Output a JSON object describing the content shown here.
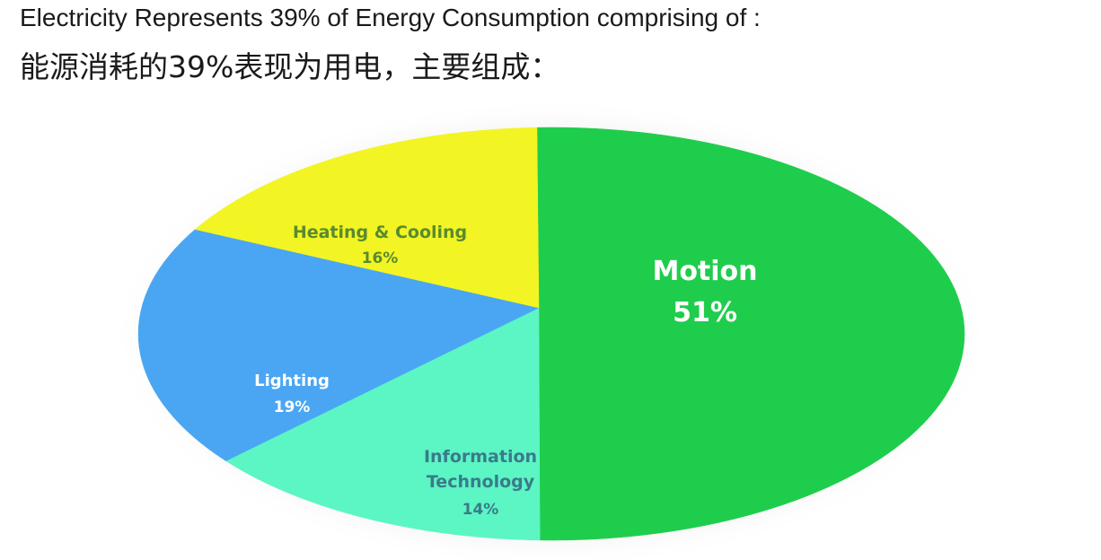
{
  "title": "Electricity Represents 39% of Energy Consumption comprising of :",
  "subtitle": "能源消耗的39%表现为用电，主要组成：",
  "chart_data": {
    "type": "pie",
    "slices": [
      {
        "label": "Motion",
        "value": 51,
        "value_label": "51%",
        "color": "#1fcd4c"
      },
      {
        "label": "Information Technology",
        "label_lines": [
          "Information",
          "Technology"
        ],
        "value": 14,
        "value_label": "14%",
        "color": "#5cf5c4"
      },
      {
        "label": "Lighting",
        "value": 19,
        "value_label": "19%",
        "color": "#4aa6f2"
      },
      {
        "label": "Heating & Cooling",
        "value": 16,
        "value_label": "16%",
        "color": "#f2f523"
      }
    ],
    "label_colors": {
      "Motion": "#ffffff",
      "Information Technology": "#3a7a8a",
      "Lighting": "#ffffff",
      "Heating & Cooling": "#5a8a30"
    }
  }
}
